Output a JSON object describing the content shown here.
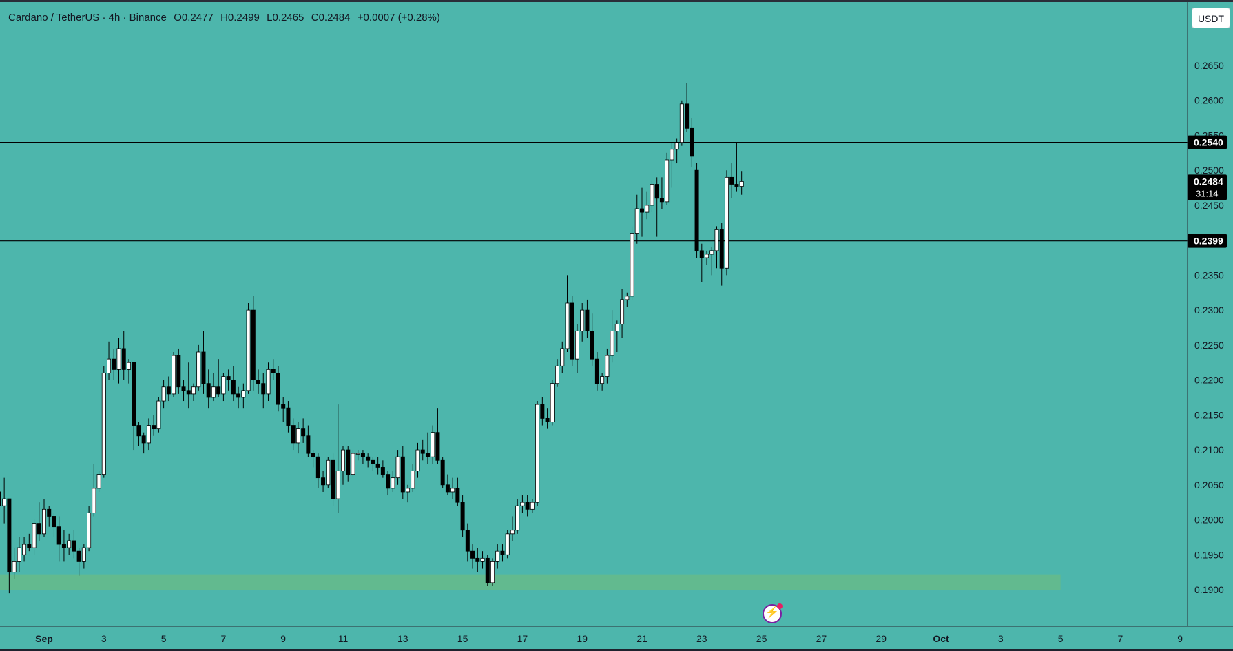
{
  "header": {
    "symbol": "Cardano / TetherUS · 4h · Binance",
    "open": "O0.2477",
    "high": "H0.2499",
    "low": "L0.2465",
    "close": "C0.2484",
    "change": "+0.0007 (+0.28%)"
  },
  "currency_button": "USDT",
  "colors": {
    "background": "#4db6ac",
    "bull_candle": "#ffffff",
    "bear_candle": "#000000",
    "support_zone": "#66bb8a",
    "horizontal_line": "#000000"
  },
  "icons": {
    "flash": "lightning-icon"
  },
  "chart_data": {
    "type": "candlestick",
    "y_axis": {
      "range": [
        0.1875,
        0.2685
      ],
      "ticks": [
        "0.2650",
        "0.2600",
        "0.2550",
        "0.2500",
        "0.2450",
        "0.2350",
        "0.2300",
        "0.2250",
        "0.2200",
        "0.2150",
        "0.2100",
        "0.2050",
        "0.2000",
        "0.1950",
        "0.1900"
      ]
    },
    "x_axis": {
      "labels": [
        {
          "label": "Sep",
          "day": 1
        },
        {
          "label": "3",
          "day": 3
        },
        {
          "label": "5",
          "day": 5
        },
        {
          "label": "7",
          "day": 7
        },
        {
          "label": "9",
          "day": 9
        },
        {
          "label": "11",
          "day": 11
        },
        {
          "label": "13",
          "day": 13
        },
        {
          "label": "15",
          "day": 15
        },
        {
          "label": "17",
          "day": 17
        },
        {
          "label": "19",
          "day": 19
        },
        {
          "label": "21",
          "day": 21
        },
        {
          "label": "23",
          "day": 23
        },
        {
          "label": "25",
          "day": 25
        },
        {
          "label": "27",
          "day": 27
        },
        {
          "label": "29",
          "day": 29
        },
        {
          "label": "Oct",
          "day": 31
        },
        {
          "label": "3",
          "day": 33
        },
        {
          "label": "5",
          "day": 35
        },
        {
          "label": "7",
          "day": 37
        },
        {
          "label": "9",
          "day": 39
        }
      ]
    },
    "horizontal_lines": [
      {
        "price": 0.254,
        "label": "0.2540"
      },
      {
        "price": 0.2399,
        "label": "0.2399"
      }
    ],
    "current_price": {
      "price": 0.2484,
      "label": "0.2484",
      "countdown": "31:14"
    },
    "zone": {
      "top": 0.1922,
      "bottom": 0.19,
      "end_day": 35
    },
    "candles_by_day": [
      {
        "day": "Aug 31",
        "candles": [
          [
            0.204,
            0.206,
            0.199,
            0.202
          ],
          [
            0.202,
            0.206,
            0.1995,
            0.203
          ]
        ]
      },
      {
        "day": "Sep 1",
        "candles": [
          [
            0.203,
            0.203,
            0.1895,
            0.1925
          ],
          [
            0.1925,
            0.196,
            0.1915,
            0.194
          ],
          [
            0.194,
            0.1975,
            0.1925,
            0.196
          ],
          [
            0.195,
            0.1975,
            0.194,
            0.1965
          ],
          [
            0.1965,
            0.198,
            0.1955,
            0.196
          ],
          [
            0.196,
            0.2,
            0.195,
            0.1995
          ]
        ]
      },
      {
        "day": "Sep 2",
        "candles": [
          [
            0.1995,
            0.2025,
            0.197,
            0.198
          ],
          [
            0.198,
            0.203,
            0.1975,
            0.2015
          ],
          [
            0.2015,
            0.202,
            0.199,
            0.2005
          ],
          [
            0.2005,
            0.201,
            0.1975,
            0.199
          ],
          [
            0.199,
            0.2005,
            0.194,
            0.1965
          ],
          [
            0.1965,
            0.1985,
            0.194,
            0.196
          ]
        ]
      },
      {
        "day": "Sep 3",
        "candles": [
          [
            0.196,
            0.198,
            0.195,
            0.197
          ],
          [
            0.197,
            0.1985,
            0.1945,
            0.1955
          ],
          [
            0.1955,
            0.196,
            0.192,
            0.194
          ],
          [
            0.194,
            0.1965,
            0.193,
            0.196
          ],
          [
            0.196,
            0.202,
            0.1955,
            0.201
          ],
          [
            0.201,
            0.208,
            0.2005,
            0.2045
          ]
        ]
      },
      {
        "day": "Sep 4",
        "candles": [
          [
            0.2045,
            0.207,
            0.204,
            0.2065
          ],
          [
            0.2065,
            0.222,
            0.206,
            0.221
          ],
          [
            0.221,
            0.2255,
            0.22,
            0.223
          ],
          [
            0.223,
            0.2245,
            0.22,
            0.2215
          ],
          [
            0.2215,
            0.226,
            0.2195,
            0.2245
          ],
          [
            0.2245,
            0.227,
            0.22,
            0.2215
          ]
        ]
      },
      {
        "day": "Sep 5",
        "candles": [
          [
            0.2215,
            0.223,
            0.2195,
            0.2225
          ],
          [
            0.2225,
            0.2225,
            0.21,
            0.2135
          ],
          [
            0.2135,
            0.214,
            0.2105,
            0.212
          ],
          [
            0.212,
            0.2125,
            0.2095,
            0.211
          ],
          [
            0.211,
            0.2145,
            0.21,
            0.2135
          ],
          [
            0.2135,
            0.215,
            0.212,
            0.213
          ]
        ]
      },
      {
        "day": "Sep 6",
        "candles": [
          [
            0.213,
            0.2175,
            0.2125,
            0.217
          ],
          [
            0.217,
            0.22,
            0.216,
            0.219
          ],
          [
            0.219,
            0.2205,
            0.217,
            0.218
          ],
          [
            0.218,
            0.224,
            0.2175,
            0.2235
          ],
          [
            0.2235,
            0.2245,
            0.218,
            0.219
          ],
          [
            0.219,
            0.22,
            0.217,
            0.2185
          ]
        ]
      },
      {
        "day": "Sep 7",
        "candles": [
          [
            0.2185,
            0.2225,
            0.216,
            0.218
          ],
          [
            0.218,
            0.2195,
            0.217,
            0.219
          ],
          [
            0.219,
            0.225,
            0.2185,
            0.224
          ],
          [
            0.224,
            0.227,
            0.218,
            0.2195
          ],
          [
            0.2195,
            0.2215,
            0.216,
            0.2175
          ],
          [
            0.2175,
            0.221,
            0.217,
            0.219
          ]
        ]
      },
      {
        "day": "Sep 8",
        "candles": [
          [
            0.219,
            0.223,
            0.2175,
            0.218
          ],
          [
            0.218,
            0.221,
            0.217,
            0.2205
          ],
          [
            0.2205,
            0.2215,
            0.2185,
            0.22
          ],
          [
            0.22,
            0.222,
            0.217,
            0.218
          ],
          [
            0.218,
            0.219,
            0.216,
            0.2175
          ],
          [
            0.2175,
            0.2195,
            0.216,
            0.2185
          ]
        ]
      },
      {
        "day": "Sep 9",
        "candles": [
          [
            0.2185,
            0.231,
            0.218,
            0.23
          ],
          [
            0.23,
            0.232,
            0.2185,
            0.22
          ],
          [
            0.22,
            0.2215,
            0.218,
            0.2195
          ],
          [
            0.2195,
            0.221,
            0.216,
            0.218
          ],
          [
            0.218,
            0.2225,
            0.217,
            0.2215
          ],
          [
            0.2215,
            0.223,
            0.22,
            0.221
          ]
        ]
      },
      {
        "day": "Sep 10",
        "candles": [
          [
            0.221,
            0.222,
            0.2155,
            0.2165
          ],
          [
            0.2165,
            0.2175,
            0.214,
            0.216
          ],
          [
            0.216,
            0.217,
            0.2125,
            0.2135
          ],
          [
            0.2135,
            0.2145,
            0.21,
            0.211
          ],
          [
            0.211,
            0.214,
            0.2095,
            0.213
          ],
          [
            0.213,
            0.2145,
            0.211,
            0.212
          ]
        ]
      },
      {
        "day": "Sep 11",
        "candles": [
          [
            0.212,
            0.2135,
            0.209,
            0.2095
          ],
          [
            0.2095,
            0.21,
            0.2075,
            0.209
          ],
          [
            0.209,
            0.2095,
            0.2045,
            0.206
          ],
          [
            0.206,
            0.207,
            0.204,
            0.205
          ],
          [
            0.205,
            0.209,
            0.2045,
            0.2085
          ],
          [
            0.2085,
            0.2095,
            0.202,
            0.203
          ]
        ]
      },
      {
        "day": "Sep 12",
        "candles": [
          [
            0.203,
            0.2165,
            0.201,
            0.207
          ],
          [
            0.207,
            0.2105,
            0.205,
            0.21
          ],
          [
            0.21,
            0.2105,
            0.2055,
            0.2065
          ],
          [
            0.2065,
            0.21,
            0.206,
            0.2095
          ],
          [
            0.2095,
            0.21,
            0.2085,
            0.2095
          ],
          [
            0.2095,
            0.21,
            0.208,
            0.209
          ]
        ]
      },
      {
        "day": "Sep 13",
        "candles": [
          [
            0.209,
            0.2095,
            0.2075,
            0.2085
          ],
          [
            0.2085,
            0.209,
            0.207,
            0.208
          ],
          [
            0.208,
            0.209,
            0.2065,
            0.2075
          ],
          [
            0.2075,
            0.2085,
            0.206,
            0.2065
          ],
          [
            0.2065,
            0.207,
            0.2035,
            0.2045
          ],
          [
            0.2045,
            0.207,
            0.204,
            0.206
          ]
        ]
      },
      {
        "day": "Sep 14",
        "candles": [
          [
            0.206,
            0.21,
            0.205,
            0.209
          ],
          [
            0.209,
            0.2105,
            0.203,
            0.204
          ],
          [
            0.204,
            0.205,
            0.2025,
            0.2045
          ],
          [
            0.2045,
            0.208,
            0.204,
            0.207
          ],
          [
            0.207,
            0.211,
            0.206,
            0.21
          ],
          [
            0.21,
            0.2115,
            0.2085,
            0.2095
          ]
        ]
      },
      {
        "day": "Sep 15",
        "candles": [
          [
            0.2095,
            0.2125,
            0.208,
            0.209
          ],
          [
            0.209,
            0.2135,
            0.208,
            0.2125
          ],
          [
            0.2125,
            0.216,
            0.208,
            0.2085
          ],
          [
            0.2085,
            0.209,
            0.2045,
            0.205
          ],
          [
            0.205,
            0.2065,
            0.2035,
            0.204
          ],
          [
            0.204,
            0.206,
            0.203,
            0.2045
          ]
        ]
      },
      {
        "day": "Sep 16",
        "candles": [
          [
            0.2045,
            0.206,
            0.202,
            0.2025
          ],
          [
            0.2025,
            0.2035,
            0.1975,
            0.1985
          ],
          [
            0.1985,
            0.1995,
            0.194,
            0.1955
          ],
          [
            0.1955,
            0.1965,
            0.193,
            0.1945
          ],
          [
            0.1945,
            0.196,
            0.1925,
            0.194
          ],
          [
            0.194,
            0.1955,
            0.193,
            0.1945
          ]
        ]
      },
      {
        "day": "Sep 17",
        "candles": [
          [
            0.1945,
            0.195,
            0.1905,
            0.191
          ],
          [
            0.191,
            0.1945,
            0.1905,
            0.194
          ],
          [
            0.194,
            0.1965,
            0.193,
            0.1955
          ],
          [
            0.1955,
            0.1965,
            0.194,
            0.195
          ],
          [
            0.195,
            0.1985,
            0.1945,
            0.198
          ],
          [
            0.198,
            0.2005,
            0.197,
            0.1985
          ]
        ]
      },
      {
        "day": "Sep 18",
        "candles": [
          [
            0.1985,
            0.203,
            0.198,
            0.202
          ],
          [
            0.202,
            0.2035,
            0.201,
            0.2025
          ],
          [
            0.2025,
            0.2035,
            0.2005,
            0.2015
          ],
          [
            0.2015,
            0.203,
            0.201,
            0.2025
          ],
          [
            0.2025,
            0.217,
            0.202,
            0.2165
          ],
          [
            0.2165,
            0.2175,
            0.2135,
            0.2145
          ]
        ]
      },
      {
        "day": "Sep 19",
        "candles": [
          [
            0.2145,
            0.216,
            0.213,
            0.214
          ],
          [
            0.214,
            0.22,
            0.2135,
            0.2195
          ],
          [
            0.2195,
            0.223,
            0.219,
            0.222
          ],
          [
            0.222,
            0.2255,
            0.221,
            0.2245
          ],
          [
            0.2245,
            0.235,
            0.224,
            0.231
          ],
          [
            0.231,
            0.232,
            0.222,
            0.223
          ]
        ]
      },
      {
        "day": "Sep 20",
        "candles": [
          [
            0.223,
            0.228,
            0.221,
            0.227
          ],
          [
            0.227,
            0.231,
            0.2255,
            0.23
          ],
          [
            0.23,
            0.2315,
            0.226,
            0.227
          ],
          [
            0.227,
            0.2295,
            0.222,
            0.223
          ],
          [
            0.223,
            0.224,
            0.2185,
            0.2195
          ],
          [
            0.2195,
            0.221,
            0.2185,
            0.2205
          ]
        ]
      },
      {
        "day": "Sep 21",
        "candles": [
          [
            0.2205,
            0.2245,
            0.2195,
            0.2235
          ],
          [
            0.2235,
            0.23,
            0.2225,
            0.227
          ],
          [
            0.227,
            0.2285,
            0.224,
            0.228
          ],
          [
            0.228,
            0.233,
            0.226,
            0.2315
          ],
          [
            0.2315,
            0.2325,
            0.2305,
            0.232
          ],
          [
            0.232,
            0.242,
            0.2315,
            0.241
          ]
        ]
      },
      {
        "day": "Sep 22",
        "candles": [
          [
            0.241,
            0.2465,
            0.2395,
            0.2445
          ],
          [
            0.2445,
            0.2475,
            0.2405,
            0.244
          ],
          [
            0.244,
            0.247,
            0.243,
            0.245
          ],
          [
            0.245,
            0.2485,
            0.244,
            0.248
          ],
          [
            0.248,
            0.249,
            0.2405,
            0.246
          ],
          [
            0.246,
            0.249,
            0.2445,
            0.2455
          ]
        ]
      },
      {
        "day": "Sep 23",
        "candles": [
          [
            0.2455,
            0.2525,
            0.245,
            0.2515
          ],
          [
            0.2515,
            0.254,
            0.2475,
            0.253
          ],
          [
            0.253,
            0.2545,
            0.251,
            0.254
          ],
          [
            0.254,
            0.26,
            0.2535,
            0.2595
          ],
          [
            0.2595,
            0.2625,
            0.2555,
            0.256
          ],
          [
            0.256,
            0.2575,
            0.2505,
            0.252
          ]
        ]
      },
      {
        "day": "Sep 24",
        "candles": [
          [
            0.25,
            0.251,
            0.2375,
            0.2385
          ],
          [
            0.2385,
            0.2395,
            0.234,
            0.2375
          ],
          [
            0.2375,
            0.2385,
            0.2365,
            0.238
          ],
          [
            0.238,
            0.239,
            0.235,
            0.2385
          ],
          [
            0.2385,
            0.242,
            0.236,
            0.2415
          ],
          [
            0.2415,
            0.2425,
            0.2335,
            0.236
          ]
        ]
      },
      {
        "day": "Sep 25",
        "candles": [
          [
            0.236,
            0.25,
            0.235,
            0.249
          ],
          [
            0.249,
            0.251,
            0.246,
            0.248
          ],
          [
            0.248,
            0.254,
            0.247,
            0.2477
          ],
          [
            0.2477,
            0.2499,
            0.2465,
            0.2484
          ]
        ]
      }
    ]
  }
}
